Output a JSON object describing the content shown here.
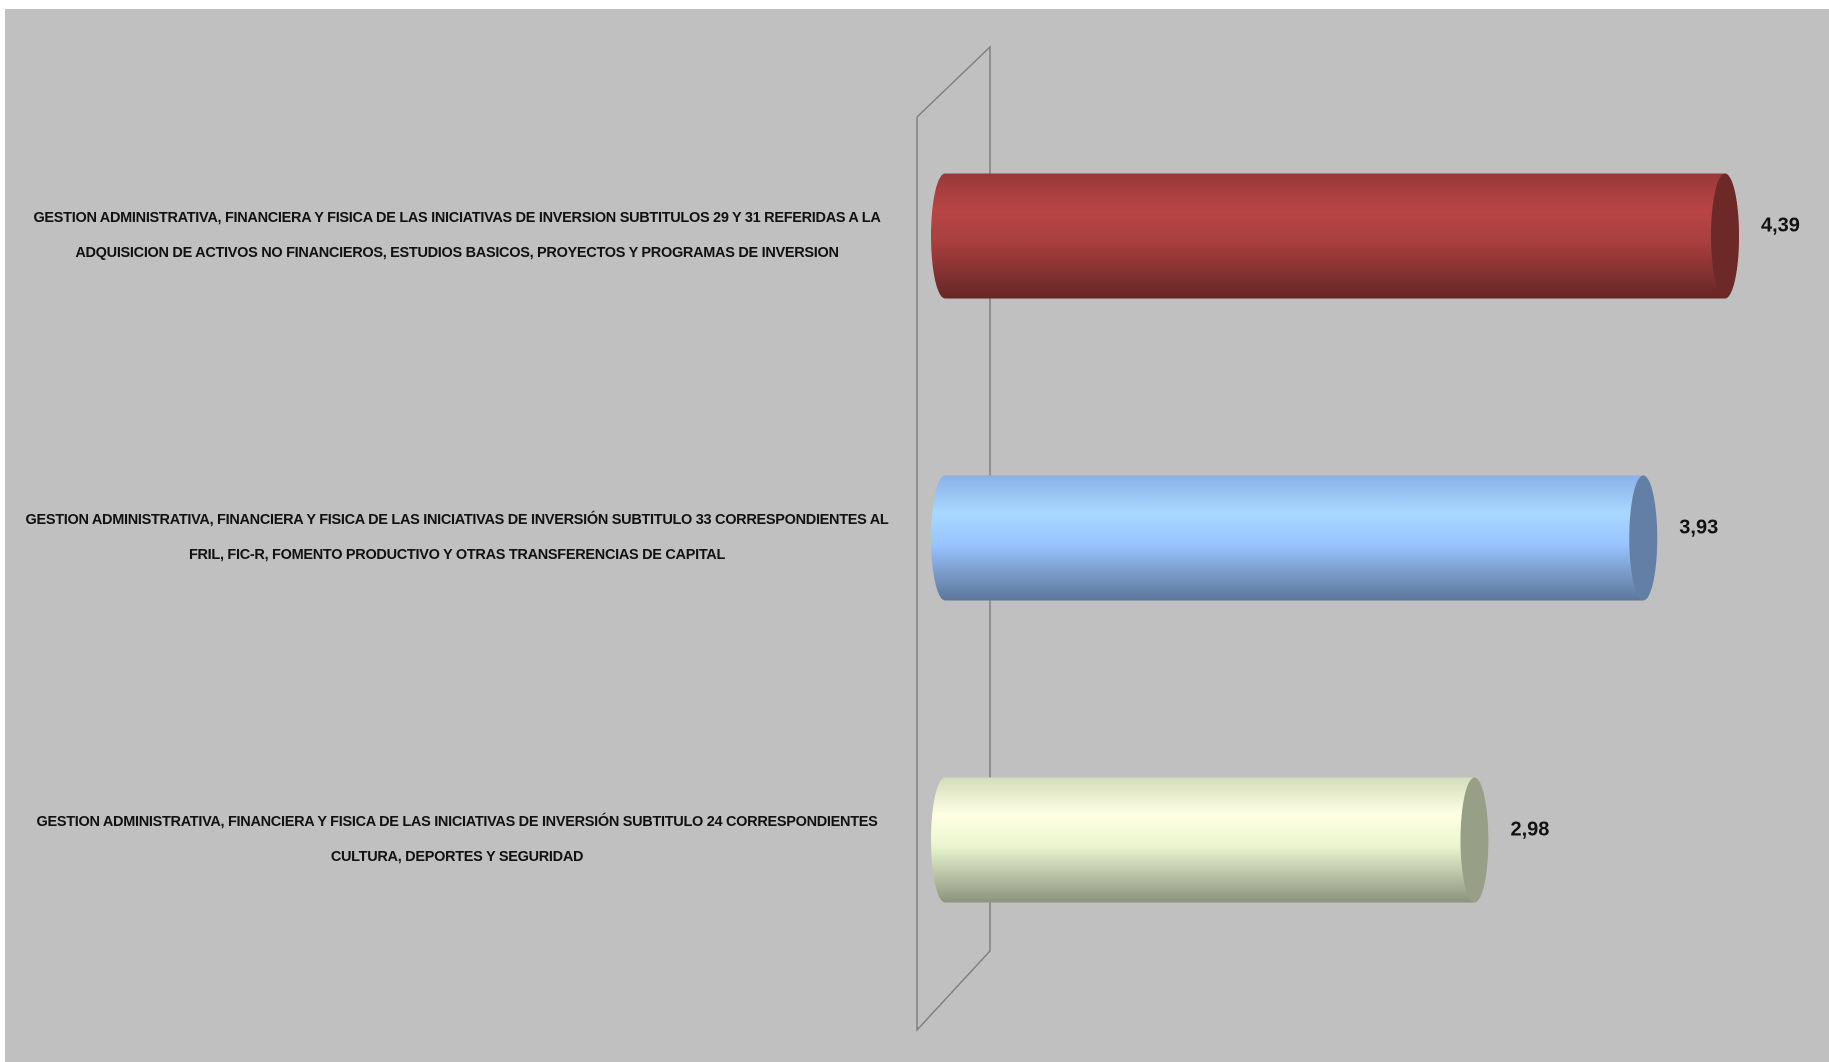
{
  "chart_data": {
    "type": "bar",
    "orientation": "horizontal",
    "style": "3d-cylinder",
    "categories": [
      "GESTION ADMINISTRATIVA, FINANCIERA Y FISICA DE LAS INICIATIVAS DE INVERSION SUBTITULOS 29 Y 31 REFERIDAS A LA ADQUISICION DE ACTIVOS NO FINANCIEROS, ESTUDIOS BASICOS, PROYECTOS Y PROGRAMAS DE INVERSION",
      "GESTION ADMINISTRATIVA, FINANCIERA Y FISICA DE LAS INICIATIVAS DE INVERSIÓN SUBTITULO 33 CORRESPONDIENTES AL FRIL, FIC-R, FOMENTO PRODUCTIVO Y OTRAS TRANSFERENCIAS DE CAPITAL",
      "GESTION ADMINISTRATIVA, FINANCIERA Y FISICA DE LAS INICIATIVAS DE INVERSIÓN SUBTITULO 24 CORRESPONDIENTES CULTURA, DEPORTES Y SEGURIDAD"
    ],
    "values": [
      4.39,
      3.93,
      2.98
    ],
    "value_labels": [
      "4,39",
      "3,93",
      "2,98"
    ],
    "colors": [
      "#a83f3e",
      "#99c4ff",
      "#eaf5cf"
    ]
  }
}
